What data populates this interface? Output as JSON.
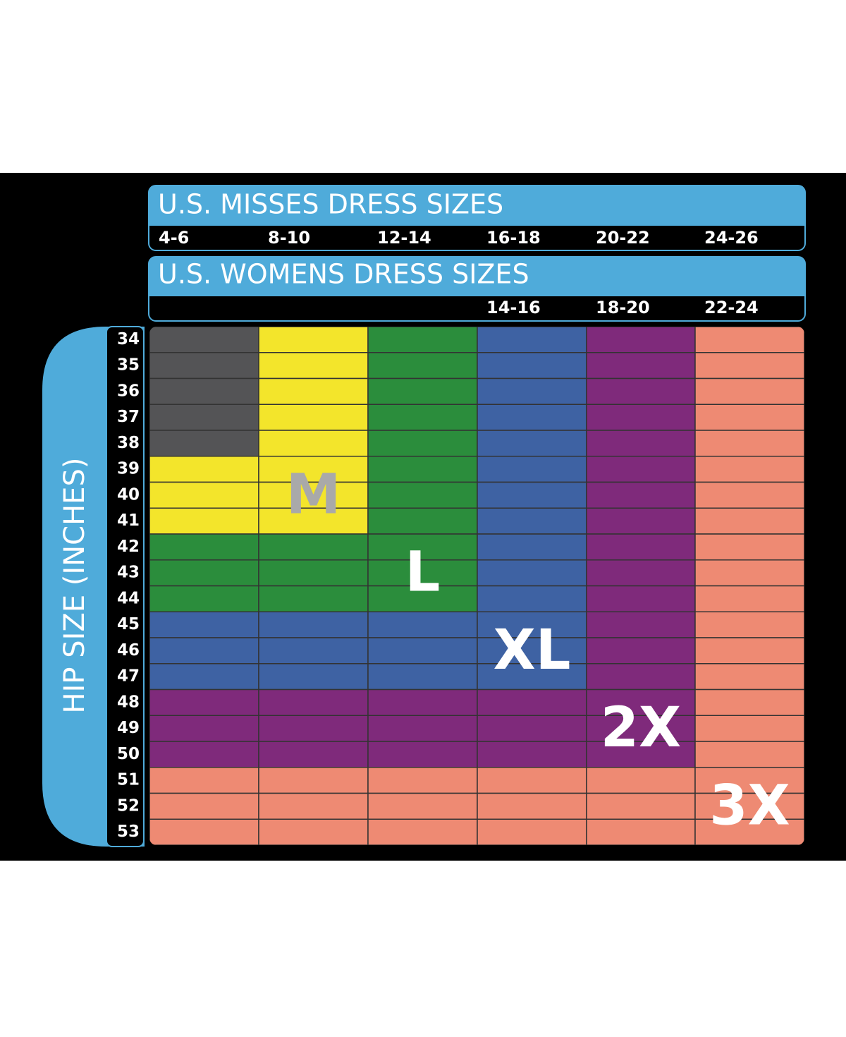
{
  "misses": {
    "title": "U.S. MISSES DRESS SIZES",
    "sizes": [
      "4-6",
      "8-10",
      "12-14",
      "16-18",
      "20-22",
      "24-26"
    ]
  },
  "womens": {
    "title": "U.S. WOMENS DRESS SIZES",
    "sizes": [
      null,
      null,
      null,
      "14-16",
      "18-20",
      "22-24"
    ]
  },
  "hip_title": "HIP SIZE (INCHES)",
  "hip_sizes": [
    34,
    35,
    36,
    37,
    38,
    39,
    40,
    41,
    42,
    43,
    44,
    45,
    46,
    47,
    48,
    49,
    50,
    51,
    52,
    53
  ],
  "regions": [
    {
      "color": "#545456"
    },
    {
      "label": "M",
      "color": "#f3e52b",
      "label_color": "#a9a9a9"
    },
    {
      "label": "L",
      "color": "#2b8d3c",
      "label_color": "#ffffff"
    },
    {
      "label": "XL",
      "color": "#3e62a3",
      "label_color": "#ffffff"
    },
    {
      "label": "2X",
      "color": "#7f2a7b",
      "label_color": "#ffffff"
    },
    {
      "label": "3X",
      "color": "#ee8a73",
      "label_color": "#ffffff"
    }
  ]
}
